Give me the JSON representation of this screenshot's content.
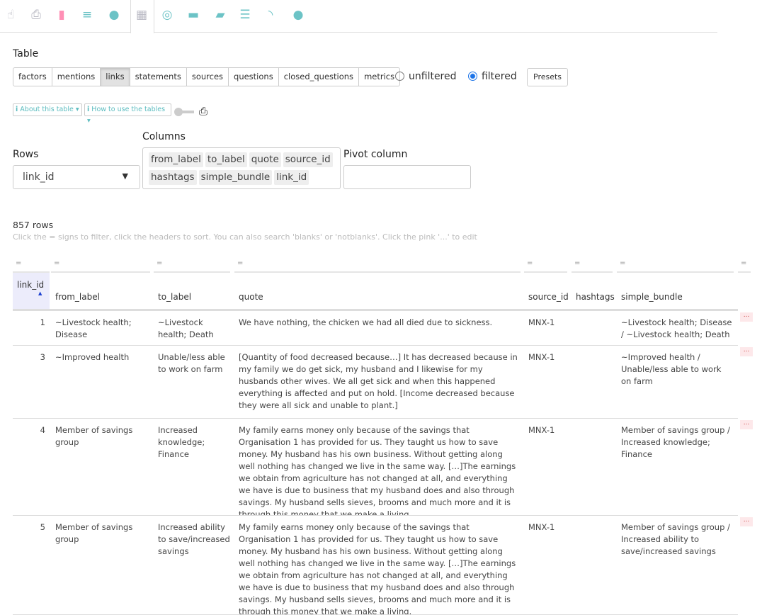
{
  "nav": {
    "icons": [
      {
        "name": "hand-pointer-icon",
        "color": "#b9b9c3",
        "glyph": "☝"
      },
      {
        "name": "print-icon",
        "color": "#b9b9c3",
        "glyph": "⎙"
      },
      {
        "name": "file-icon",
        "color": "#ff8fb5",
        "glyph": "▮"
      },
      {
        "name": "align-left-icon",
        "color": "#6cc3c6",
        "glyph": "≡"
      },
      {
        "name": "compass-icon",
        "color": "#6cc3c6",
        "glyph": "●"
      },
      {
        "name": "table-icon",
        "color": "#b9b9c3",
        "glyph": "▦"
      },
      {
        "name": "target-icon",
        "color": "#6cc3c6",
        "glyph": "◎"
      },
      {
        "name": "ruler-icon",
        "color": "#6cc3c6",
        "glyph": "▬"
      },
      {
        "name": "folder-open-icon",
        "color": "#6cc3c6",
        "glyph": "▰"
      },
      {
        "name": "database-icon",
        "color": "#6cc3c6",
        "glyph": "☰"
      },
      {
        "name": "rss-icon",
        "color": "#6cc3c6",
        "glyph": "◝"
      },
      {
        "name": "user-circle-icon",
        "color": "#6cc3c6",
        "glyph": "●"
      }
    ]
  },
  "table_label": "Table",
  "tabs": [
    "factors",
    "mentions",
    "links",
    "statements",
    "sources",
    "questions",
    "closed_questions",
    "metrics"
  ],
  "selected_tab": "links",
  "filter": {
    "unfiltered": "unfiltered",
    "filtered": "filtered",
    "selected": "filtered"
  },
  "presets": "Presets",
  "about": "About this table",
  "howto": "How to use the tables",
  "rows_label": "Rows",
  "rows_value": "link_id",
  "columns_label": "Columns",
  "columns": [
    "from_label",
    "to_label",
    "quote",
    "source_id",
    "hashtags",
    "simple_bundle",
    "link_id"
  ],
  "pivot_label": "Pivot column",
  "row_count": "857 rows",
  "hint": "Click the = signs to filter, click the headers to sort. You can also search 'blanks' or 'notblanks'. Click the pink '...' to edit",
  "filter_sign": "=",
  "headers": [
    "link_id",
    "from_label",
    "to_label",
    "quote",
    "source_id",
    "hashtags",
    "simple_bundle"
  ],
  "edit_label": "...",
  "rows": [
    {
      "link_id": "1",
      "from_label": "~Livestock health; Disease",
      "to_label": "~Livestock health; Death",
      "quote": "We have nothing, the chicken we had all died due to sickness.",
      "source_id": "MNX-1",
      "hashtags": "",
      "simple_bundle": "~Livestock health; Disease / ~Livestock health; Death"
    },
    {
      "link_id": "3",
      "from_label": "~Improved health",
      "to_label": "Unable/less able to work on farm",
      "quote": "[Quantity of food decreased because…] It has decreased because in my family we do get sick, my husband and I likewise for my husbands other wives. We all get sick and when this happened everything is affected and put on hold. [Income decreased because they were all sick and unable to plant.]",
      "source_id": "MNX-1",
      "hashtags": "",
      "simple_bundle": "~Improved health / Unable/less able to work on farm"
    },
    {
      "link_id": "4",
      "from_label": "Member of savings group",
      "to_label": "Increased knowledge; Finance",
      "quote": "My family earns money only because of the savings that Organisation 1 has provided for us. They taught us how to save money. My husband has his own business. Without getting along well nothing has changed we live in the same way. […]The earnings we obtain from agriculture has not changed at all, and everything we have is due to business that my husband does and also through savings. My husband sells sieves, brooms and much more and it is through this money that we make a living.",
      "source_id": "MNX-1",
      "hashtags": "",
      "simple_bundle": "Member of savings group / Increased knowledge; Finance"
    },
    {
      "link_id": "5",
      "from_label": "Member of savings group",
      "to_label": "Increased ability to save/increased savings",
      "quote": "My family earns money only because of the savings that Organisation 1 has provided for us. They taught us how to save money. My husband has his own business. Without getting along well nothing has changed we live in the same way. […]The earnings we obtain from agriculture has not changed at all, and everything we have is due to business that my husband does and also through savings. My husband sells sieves, brooms and much more and it is through this money that we make a living.",
      "source_id": "MNX-1",
      "hashtags": "",
      "simple_bundle": "Member of savings group / Increased ability to save/increased savings"
    }
  ]
}
